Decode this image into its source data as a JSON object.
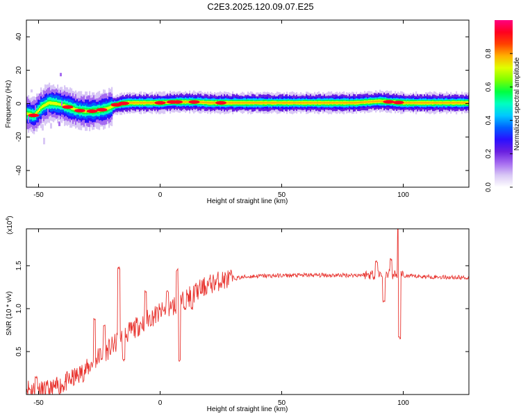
{
  "title": "C2E3.2025.120.09.07.E25",
  "chart_data": [
    {
      "type": "heatmap",
      "title": "C2E3.2025.120.09.07.E25",
      "xlabel": "Height of straight line (km)",
      "ylabel": "Frequency (Hz)",
      "xlim": [
        -55,
        127
      ],
      "ylim": [
        -50,
        50
      ],
      "xticks": [
        -50,
        0,
        50,
        100
      ],
      "yticks": [
        -40,
        -20,
        0,
        20,
        40
      ],
      "colorbar": {
        "label": "Normalized spectral amplitude",
        "ticks": [
          "0.0",
          "0.2",
          "0.4",
          "0.6",
          "0.8"
        ],
        "range": [
          0,
          1
        ],
        "colormap": [
          "#ffffff",
          "#d9c8f5",
          "#a66cf0",
          "#6a1fe0",
          "#2a10ff",
          "#0060ff",
          "#00c8ff",
          "#00ffc0",
          "#00ff40",
          "#80ff00",
          "#e0ff00",
          "#ffb000",
          "#ff4000",
          "#ff0020",
          "#ff0080"
        ]
      },
      "ridge": {
        "centerline_hz": [
          [
            -55,
            -6
          ],
          [
            -52,
            -7
          ],
          [
            -49,
            -2
          ],
          [
            -46,
            0.5
          ],
          [
            -43,
            0
          ],
          [
            -40,
            -1
          ],
          [
            -37,
            -2.5
          ],
          [
            -34,
            -4
          ],
          [
            -31,
            -4.5
          ],
          [
            -28,
            -4.5
          ],
          [
            -25,
            -4
          ],
          [
            -22,
            -3
          ],
          [
            -19,
            -1
          ],
          [
            -16,
            0
          ],
          [
            -13,
            0.5
          ],
          [
            -10,
            0.5
          ],
          [
            -5,
            0.5
          ],
          [
            0,
            0.5
          ],
          [
            5,
            1
          ],
          [
            10,
            1
          ],
          [
            15,
            1
          ],
          [
            20,
            0.5
          ],
          [
            30,
            0.5
          ],
          [
            50,
            0.5
          ],
          [
            80,
            0.5
          ],
          [
            90,
            1.5
          ],
          [
            95,
            1
          ],
          [
            100,
            0.5
          ],
          [
            127,
            0.5
          ]
        ],
        "hotspots_km": [
          -52,
          -38,
          -33,
          -28,
          -24,
          -18,
          -15,
          0,
          5,
          7,
          14,
          25,
          94,
          98
        ]
      }
    },
    {
      "type": "line",
      "xlabel": "Height of straight line (km)",
      "ylabel": "SNR (10 * v/v)",
      "multiplier_label": "(x10",
      "multiplier_exp": "4",
      "xlim": [
        -55,
        127
      ],
      "ylim": [
        0,
        1.93
      ],
      "xticks": [
        -50,
        0,
        50,
        100
      ],
      "yticks": [
        "0.5",
        "1.0",
        "1.5"
      ],
      "color": "#e8342f",
      "trend": [
        [
          -55,
          0.08
        ],
        [
          -50,
          0.04
        ],
        [
          -45,
          0.05
        ],
        [
          -40,
          0.12
        ],
        [
          -35,
          0.2
        ],
        [
          -30,
          0.3
        ],
        [
          -25,
          0.45
        ],
        [
          -20,
          0.55
        ],
        [
          -15,
          0.68
        ],
        [
          -10,
          0.78
        ],
        [
          -5,
          0.88
        ],
        [
          0,
          0.95
        ],
        [
          5,
          1.02
        ],
        [
          10,
          1.1
        ],
        [
          15,
          1.2
        ],
        [
          20,
          1.28
        ],
        [
          25,
          1.33
        ],
        [
          30,
          1.35
        ],
        [
          35,
          1.37
        ],
        [
          40,
          1.38
        ],
        [
          60,
          1.39
        ],
        [
          80,
          1.39
        ],
        [
          90,
          1.4
        ],
        [
          95,
          1.4
        ],
        [
          100,
          1.38
        ],
        [
          127,
          1.36
        ]
      ],
      "spikes": [
        [
          -51,
          0.2
        ],
        [
          -27,
          0.88
        ],
        [
          -23,
          0.8
        ],
        [
          -17,
          1.47
        ],
        [
          -15,
          0.4
        ],
        [
          -6,
          1.2
        ],
        [
          3,
          1.2
        ],
        [
          7,
          1.45
        ],
        [
          8,
          0.4
        ],
        [
          13,
          1.0
        ],
        [
          89,
          1.55
        ],
        [
          92,
          1.08
        ],
        [
          95,
          1.57
        ],
        [
          98,
          1.94
        ],
        [
          98.5,
          0.66
        ]
      ]
    }
  ]
}
